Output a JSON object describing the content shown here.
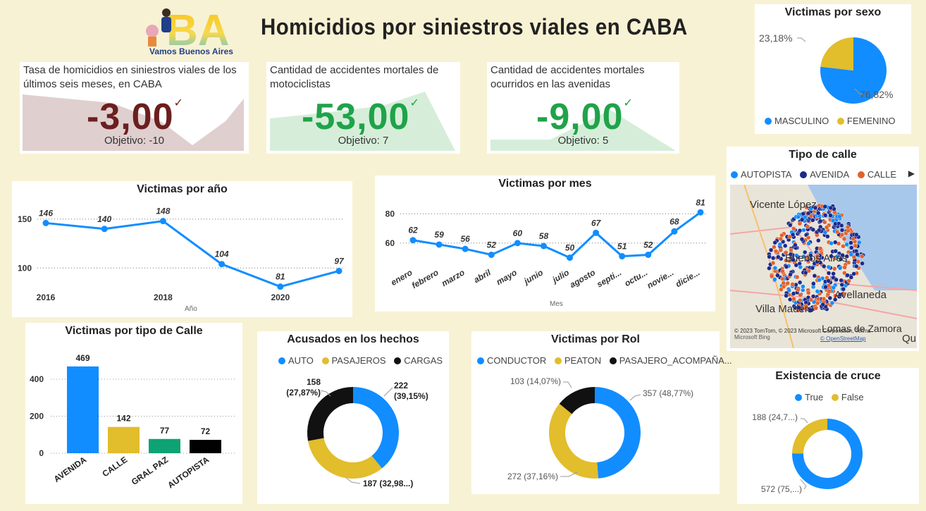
{
  "header": {
    "logo_text": "BA",
    "logo_subtitle": "Vamos Buenos Aires",
    "title": "Homicidios por siniestros viales en CABA"
  },
  "kpis": [
    {
      "label": "Tasa de homicidios en siniestros viales de los últimos seis meses, en CABA",
      "value": "-3,00",
      "check": "✓",
      "goal": "Objetivo: -10",
      "color": "#6b1f1f",
      "fill": "#e0cfcf"
    },
    {
      "label": "Cantidad de accidentes mortales de motociclistas",
      "value": "-53,00",
      "check": "✓",
      "goal": "Objetivo: 7",
      "color": "#1fa34a",
      "fill": "#d6eed9"
    },
    {
      "label": "Cantidad de accidentes mortales ocurridos en las avenidas",
      "value": "-9,00",
      "check": "✓",
      "goal": "Objetivo: 5",
      "color": "#1fa34a",
      "fill": "#d6eed9"
    }
  ],
  "map": {
    "title": "Tipo de calle",
    "legend": [
      {
        "label": "AUTOPISTA",
        "color": "#118dff"
      },
      {
        "label": "AVENIDA",
        "color": "#1c2a8c"
      },
      {
        "label": "CALLE",
        "color": "#e2622b"
      }
    ],
    "places": [
      "Vicente López",
      "Buenos Aires",
      "Avellaneda",
      "Villa Madero",
      "Lomas de Zamora",
      "Quil"
    ],
    "attribution": "© 2023 TomTom, © 2023 Microsoft Corporation, Terms",
    "attribution2": "© OpenStreetMap",
    "bing": "Microsoft Bing"
  },
  "chart_data": [
    {
      "id": "sexo",
      "type": "pie",
      "title": "Victimas por sexo",
      "categories": [
        "MASCULINO",
        "FEMENINO"
      ],
      "values": [
        76.82,
        23.18
      ],
      "labels": [
        "76,82%",
        "23,18%"
      ],
      "colors": [
        "#118dff",
        "#e2bd2c"
      ]
    },
    {
      "id": "anio",
      "type": "line",
      "title": "Victimas por año",
      "xlabel": "Año",
      "ylabel": "",
      "x": [
        2016,
        2017,
        2018,
        2019,
        2020,
        2021
      ],
      "values": [
        146,
        140,
        148,
        104,
        81,
        97
      ],
      "xticks": [
        "2016",
        "2018",
        "2020"
      ],
      "yticks": [
        "150",
        "100"
      ],
      "ylim": [
        75,
        160
      ],
      "color": "#118dff"
    },
    {
      "id": "mes",
      "type": "line",
      "title": "Victimas por mes",
      "xlabel": "Mes",
      "ylabel": "",
      "categories": [
        "enero",
        "febrero",
        "marzo",
        "abril",
        "mayo",
        "junio",
        "julio",
        "agosto",
        "septi...",
        "octu...",
        "novie...",
        "dicie..."
      ],
      "values": [
        62,
        59,
        56,
        52,
        60,
        58,
        50,
        67,
        51,
        52,
        68,
        81
      ],
      "yticks": [
        "80",
        "60"
      ],
      "ylim": [
        45,
        85
      ],
      "color": "#118dff"
    },
    {
      "id": "tipo",
      "type": "bar",
      "title": "Victimas por tipo de Calle",
      "categories": [
        "AVENIDA",
        "CALLE",
        "GRAL PAZ",
        "AUTOPISTA"
      ],
      "values": [
        469,
        142,
        77,
        72
      ],
      "colors": [
        "#118dff",
        "#e2bd2c",
        "#0da374",
        "#000000"
      ],
      "yticks": [
        "400",
        "200",
        "0"
      ],
      "ylim": [
        0,
        480
      ]
    },
    {
      "id": "acusados",
      "type": "pie",
      "title": "Acusados en los hechos",
      "categories": [
        "AUTO",
        "PASAJEROS",
        "CARGAS"
      ],
      "values": [
        222,
        187,
        158
      ],
      "labels": [
        "222 (39,15%)",
        "187 (32,98...)",
        "158 (27,87%)"
      ],
      "colors": [
        "#118dff",
        "#e2bd2c",
        "#111111"
      ]
    },
    {
      "id": "rol",
      "type": "pie",
      "title": "Victimas por Rol",
      "categories": [
        "CONDUCTOR",
        "PEATON",
        "PASAJERO_ACOMPAÑA..."
      ],
      "values": [
        357,
        272,
        103
      ],
      "labels": [
        "357 (48,77%)",
        "272 (37,16%)",
        "103 (14,07%)"
      ],
      "colors": [
        "#118dff",
        "#e2bd2c",
        "#111111"
      ]
    },
    {
      "id": "cruce",
      "type": "pie",
      "title": "Existencia de cruce",
      "categories": [
        "True",
        "False"
      ],
      "values": [
        572,
        188
      ],
      "labels": [
        "572 (75,...)",
        "188 (24,7...)"
      ],
      "colors": [
        "#118dff",
        "#e2bd2c"
      ]
    }
  ]
}
